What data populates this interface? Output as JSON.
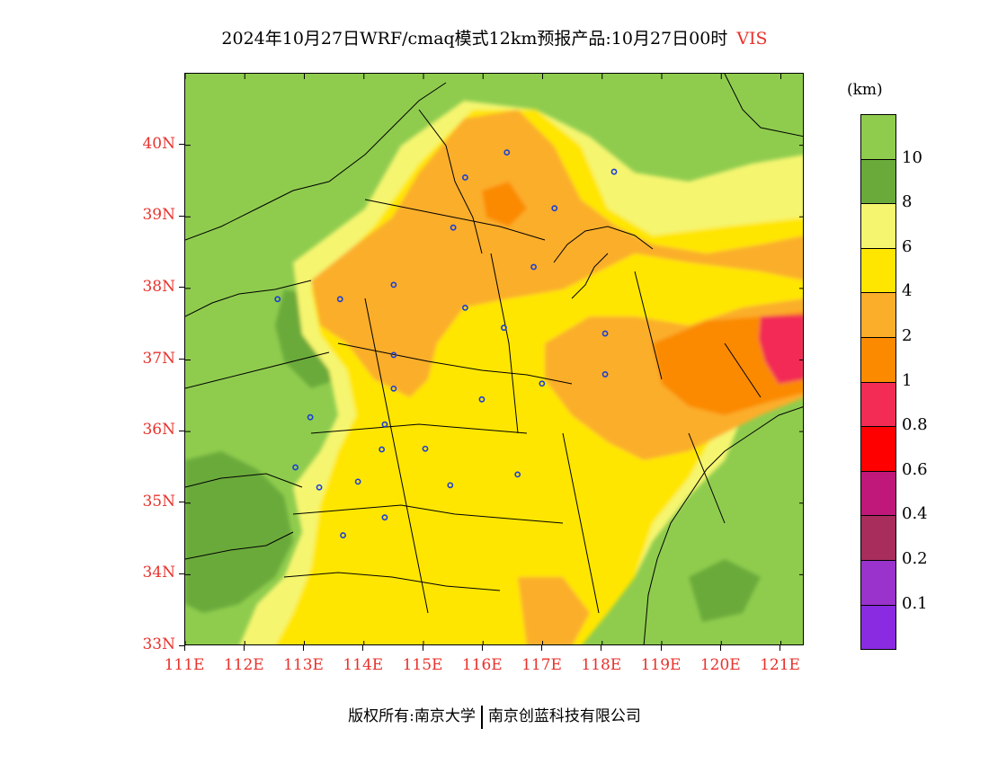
{
  "title": {
    "text": "2024年10月27日WRF/cmaq模式12km预报产品:10月27日00时",
    "variable": "VIS"
  },
  "map": {
    "lat_labels": [
      "40N",
      "39N",
      "38N",
      "37N",
      "36N",
      "35N",
      "34N",
      "33N"
    ],
    "lon_labels": [
      "111E",
      "112E",
      "113E",
      "114E",
      "115E",
      "116E",
      "117E",
      "118E",
      "119E",
      "120E",
      "121E"
    ],
    "lat_range": [
      33,
      41
    ],
    "lon_range": [
      111,
      121.4
    ],
    "cities": [
      {
        "lon": 116.4,
        "lat": 39.9
      },
      {
        "lon": 115.7,
        "lat": 39.55
      },
      {
        "lon": 117.2,
        "lat": 39.12
      },
      {
        "lon": 118.2,
        "lat": 39.63
      },
      {
        "lon": 115.5,
        "lat": 38.85
      },
      {
        "lon": 116.85,
        "lat": 38.3
      },
      {
        "lon": 114.5,
        "lat": 38.05
      },
      {
        "lon": 112.55,
        "lat": 37.85
      },
      {
        "lon": 113.6,
        "lat": 37.85
      },
      {
        "lon": 115.7,
        "lat": 37.73
      },
      {
        "lon": 116.35,
        "lat": 37.45
      },
      {
        "lon": 114.5,
        "lat": 37.07
      },
      {
        "lon": 114.5,
        "lat": 36.6
      },
      {
        "lon": 116.99,
        "lat": 36.67
      },
      {
        "lon": 118.05,
        "lat": 37.37
      },
      {
        "lon": 118.05,
        "lat": 36.8
      },
      {
        "lon": 113.1,
        "lat": 36.2
      },
      {
        "lon": 115.98,
        "lat": 36.45
      },
      {
        "lon": 114.35,
        "lat": 36.1
      },
      {
        "lon": 114.3,
        "lat": 35.75
      },
      {
        "lon": 115.03,
        "lat": 35.76
      },
      {
        "lon": 112.85,
        "lat": 35.5
      },
      {
        "lon": 113.25,
        "lat": 35.22
      },
      {
        "lon": 113.9,
        "lat": 35.3
      },
      {
        "lon": 115.45,
        "lat": 35.25
      },
      {
        "lon": 116.58,
        "lat": 35.4
      },
      {
        "lon": 114.35,
        "lat": 34.8
      },
      {
        "lon": 113.65,
        "lat": 34.55
      }
    ]
  },
  "legend": {
    "unit": "(km)",
    "colors": [
      {
        "name": "vis-gt-10",
        "hex": "#8fcc4e"
      },
      {
        "name": "vis-8-10",
        "hex": "#6aaa3a"
      },
      {
        "name": "vis-6-8",
        "hex": "#f5f570"
      },
      {
        "name": "vis-4-6",
        "hex": "#ffe600"
      },
      {
        "name": "vis-2-4",
        "hex": "#fbae2a"
      },
      {
        "name": "vis-1-2",
        "hex": "#fb8a00"
      },
      {
        "name": "vis-0.8-1",
        "hex": "#f22c55"
      },
      {
        "name": "vis-0.6-0.8",
        "hex": "#ff0000"
      },
      {
        "name": "vis-0.4-0.6",
        "hex": "#c0187a"
      },
      {
        "name": "vis-0.2-0.4",
        "hex": "#a82c5c"
      },
      {
        "name": "vis-0.1-0.2",
        "hex": "#9933cc"
      },
      {
        "name": "vis-lt-0.1",
        "hex": "#8a2be2"
      }
    ],
    "labels": [
      "10",
      "8",
      "6",
      "4",
      "2",
      "1",
      "0.8",
      "0.6",
      "0.4",
      "0.2",
      "0.1"
    ]
  },
  "footer": {
    "left": "版权所有:南京大学",
    "right": "南京创蓝科技有限公司"
  }
}
